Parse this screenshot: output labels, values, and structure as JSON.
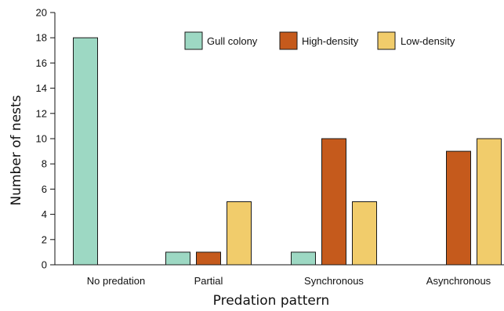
{
  "chart_data": {
    "type": "bar",
    "categories": [
      "No predation",
      "Partial",
      "Synchronous",
      "Asynchronous"
    ],
    "series": [
      {
        "name": "Gull colony",
        "values": [
          18,
          1,
          1,
          0
        ]
      },
      {
        "name": "High-density",
        "values": [
          0,
          1,
          10,
          9
        ]
      },
      {
        "name": "Low-density",
        "values": [
          0,
          5,
          5,
          10
        ]
      }
    ],
    "xlabel": "Predation pattern",
    "ylabel": "Number of nests",
    "ylim": [
      0,
      20
    ],
    "yticks": [
      0,
      2,
      4,
      6,
      8,
      10,
      12,
      14,
      16,
      18,
      20
    ],
    "grid": false,
    "legend_position": "top-right"
  },
  "colors": {
    "Gull colony": "#9dd8c3",
    "High-density": "#c55a1c",
    "Low-density": "#f1cc6b",
    "axis": "#111111"
  }
}
